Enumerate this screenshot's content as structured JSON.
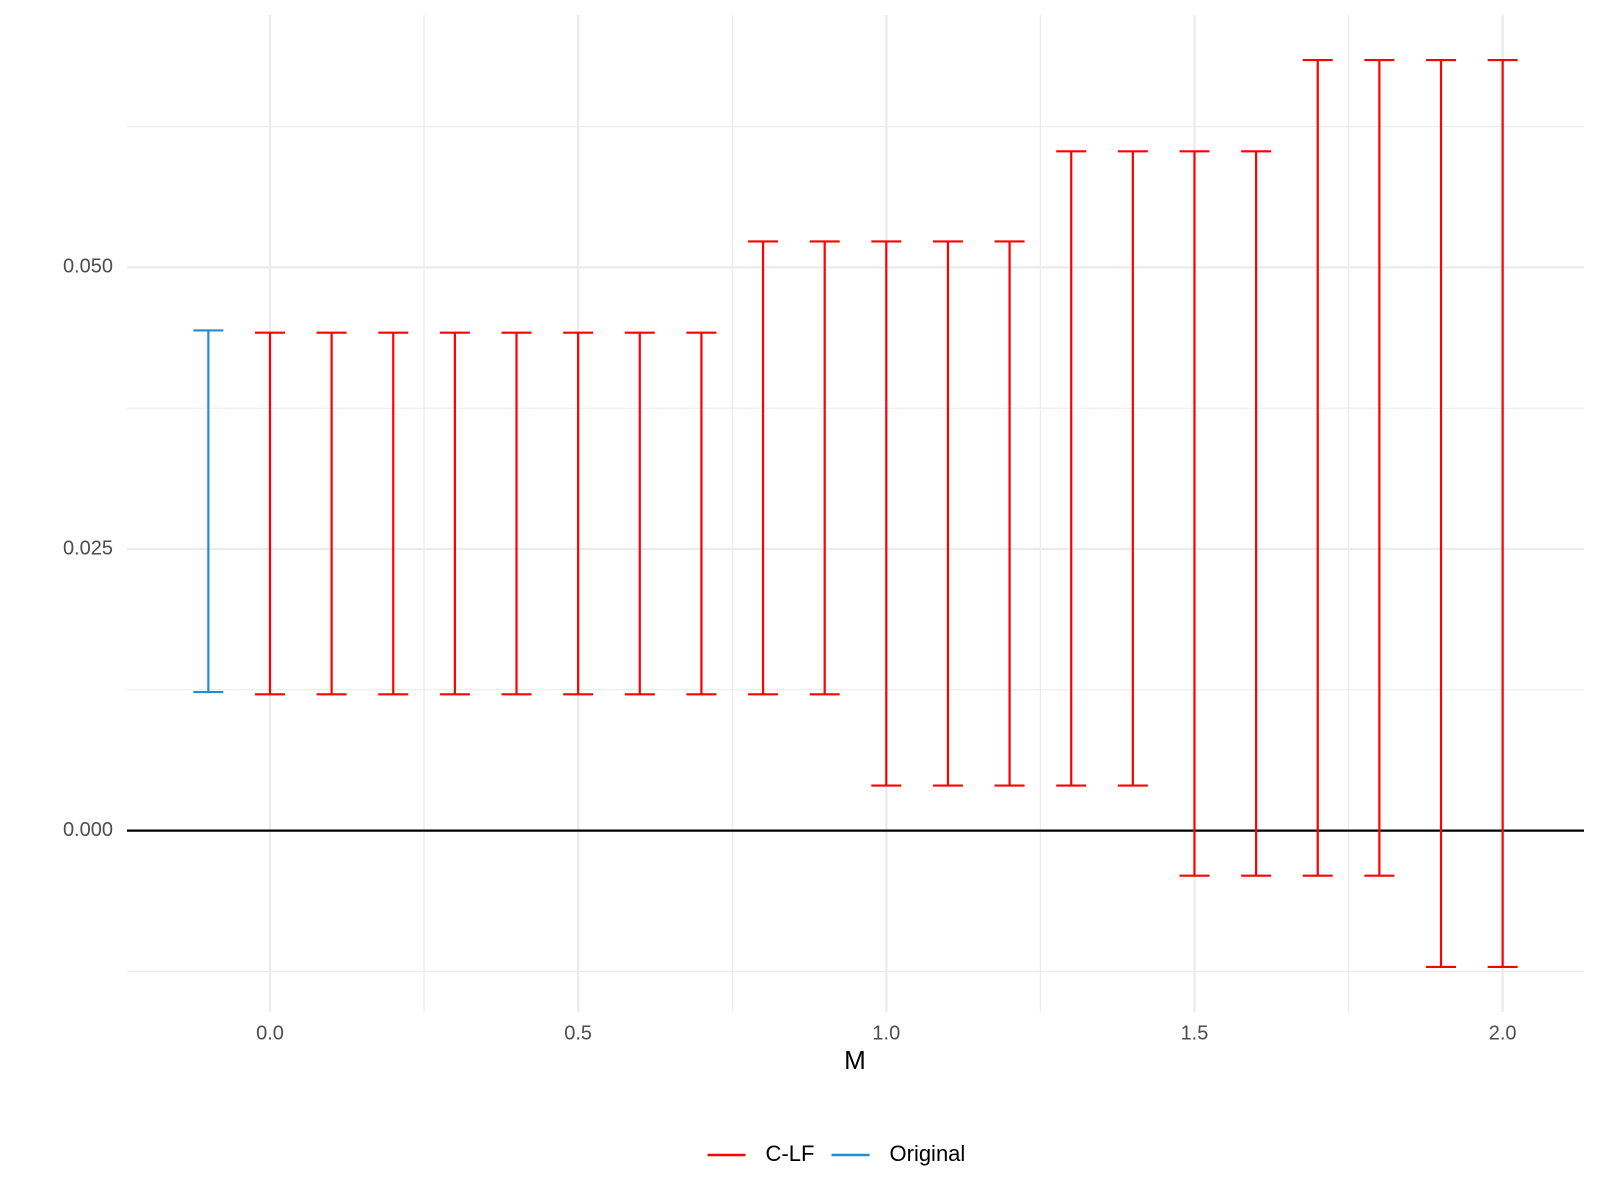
{
  "chart_data": {
    "type": "errorbar",
    "x_label": "M",
    "series": [
      {
        "name": "C-LF",
        "color": "#ff0000",
        "x": [
          0,
          0.1,
          0.2,
          0.3,
          0.4,
          0.5,
          0.6,
          0.7,
          0.8,
          0.9,
          1,
          1.1,
          1.2,
          1.3,
          1.4,
          1.5,
          1.6,
          1.7,
          1.8,
          1.9,
          2
        ],
        "low": [
          0.0121,
          0.0121,
          0.0121,
          0.0121,
          0.0121,
          0.0121,
          0.0121,
          0.0121,
          0.0121,
          0.0121,
          0.004,
          0.004,
          0.004,
          0.004,
          0.004,
          -0.004,
          -0.004,
          -0.004,
          -0.004,
          -0.0121,
          -0.0121
        ],
        "high": [
          0.0442,
          0.0442,
          0.0442,
          0.0442,
          0.0442,
          0.0442,
          0.0442,
          0.0442,
          0.0523,
          0.0523,
          0.0523,
          0.0523,
          0.0523,
          0.0603,
          0.0603,
          0.0603,
          0.0603,
          0.0684,
          0.0684,
          0.0684,
          0.0684
        ]
      },
      {
        "name": "Original",
        "color": "#1f8fd0",
        "x": [
          -0.1
        ],
        "low": [
          0.0123
        ],
        "high": [
          0.0444
        ]
      }
    ],
    "xlim": [
      -0.232,
      2.132
    ],
    "ylim": [
      -0.0161,
      0.0724
    ],
    "xticks": [
      {
        "value": 0,
        "label": "0.0"
      },
      0.5,
      {
        "value": 1,
        "label": "1.0"
      },
      1.5,
      {
        "value": 2,
        "label": "2.0"
      }
    ],
    "yticks": [
      {
        "value": 0,
        "label": "0.000"
      },
      {
        "value": 0.025,
        "label": "0.025"
      },
      {
        "value": 0.05,
        "label": "0.050"
      }
    ],
    "xminor": [
      0.25,
      0.75,
      1.25,
      1.75
    ],
    "yminor": [
      -0.0125,
      0.0125,
      0.0375,
      0.0625
    ],
    "hline": 0,
    "grid": true,
    "legend": "bottom"
  }
}
